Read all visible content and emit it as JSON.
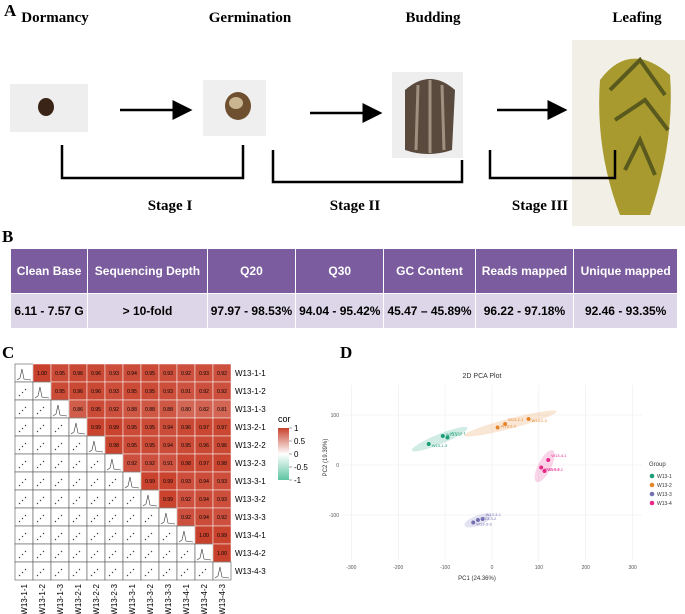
{
  "panel_a": {
    "label": "A",
    "stages": [
      "Dormancy",
      "Germination",
      "Budding",
      "Leafing"
    ],
    "phases": [
      "Stage I",
      "Stage II",
      "Stage III"
    ]
  },
  "table": {
    "label": "B",
    "header": [
      "Clean Base",
      "Sequencing Depth",
      "Q20",
      "Q30",
      "GC Content",
      "Reads mapped",
      "Unique mapped"
    ],
    "rows": [
      [
        "6.11 - 7.57 G",
        "> 10-fold",
        "97.97 - 98.53%",
        "94.04 - 95.42%",
        "45.47 – 45.89%",
        "96.22 - 97.18%",
        "92.46 - 93.35%"
      ]
    ]
  },
  "chart_data": [
    {
      "type": "heatmap",
      "label": "C",
      "labels": [
        "W13-1-1",
        "W13-1-2",
        "W13-1-3",
        "W13-2-1",
        "W13-2-2",
        "W13-2-3",
        "W13-3-1",
        "W13-3-2",
        "W13-3-3",
        "W13-4-1",
        "W13-4-2",
        "W13-4-3"
      ],
      "values": [
        [
          1,
          0.95,
          0.96,
          0.96,
          0.93,
          0.94,
          0.95,
          0.93,
          0.92,
          0.93,
          0.92
        ],
        [
          0.95,
          0.96,
          0.96,
          0.93,
          0.95,
          0.95,
          0.93,
          0.91,
          0.92,
          0.92
        ],
        [
          0.86,
          0.95,
          0.92,
          0.88,
          0.88,
          0.88,
          0.8,
          0.82,
          0.81
        ],
        [
          0.99,
          0.99,
          0.95,
          0.95,
          0.94,
          0.96,
          0.97,
          0.97
        ],
        [
          0.98,
          0.95,
          0.95,
          0.94,
          0.95,
          0.96,
          0.96
        ],
        [
          0.92,
          0.92,
          0.91,
          0.98,
          0.97,
          0.98
        ],
        [
          0.99,
          0.99,
          0.93,
          0.94,
          0.93
        ],
        [
          0.99,
          0.92,
          0.94,
          0.93
        ],
        [
          0.92,
          0.94,
          0.92
        ],
        [
          1,
          0.99
        ],
        [
          1
        ]
      ],
      "value_labels": [
        [
          "1.00",
          "0.95",
          "0.96",
          "0.96",
          "0.93",
          "0.94",
          "0.95",
          "0.93",
          "0.92",
          "0.93",
          "0.92"
        ],
        [
          "0.95",
          "0.96",
          "0.96",
          "0.93",
          "0.95",
          "0.95",
          "0.93",
          "0.91",
          "0.92",
          "0.92"
        ],
        [
          "0.86",
          "0.95",
          "0.92",
          "0.88",
          "0.88",
          "0.88",
          "0.80",
          "0.82",
          "0.81"
        ],
        [
          "0.99",
          "0.99",
          "0.95",
          "0.95",
          "0.94",
          "0.96",
          "0.97",
          "0.97"
        ],
        [
          "0.98",
          "0.95",
          "0.95",
          "0.94",
          "0.95",
          "0.96",
          "0.96"
        ],
        [
          "0.92",
          "0.92",
          "0.91",
          "0.98",
          "0.97",
          "0.98"
        ],
        [
          "0.99",
          "0.99",
          "0.93",
          "0.94",
          "0.93"
        ],
        [
          "0.99",
          "0.92",
          "0.94",
          "0.93"
        ],
        [
          "0.92",
          "0.94",
          "0.92"
        ],
        [
          "1.00",
          "0.99"
        ],
        [
          "1.00"
        ]
      ],
      "legend_title": "cor",
      "clim": [
        -1,
        1
      ],
      "cticks": [
        1,
        0.5,
        0,
        -0.5,
        -1
      ],
      "colors": {
        "low": "#5ec4a2",
        "mid": "#ffffff",
        "high": "#c8412c"
      }
    },
    {
      "type": "scatter",
      "label": "D",
      "title": "2D PCA Plot",
      "xlabel": "PC1 (24.36%)",
      "ylabel": "PC2 (19.39%)",
      "xlim": [
        -320,
        320
      ],
      "ylim": [
        -190,
        160
      ],
      "xticks": [
        -300,
        -200,
        -100,
        0,
        100,
        200,
        300
      ],
      "yticks": [
        -100,
        0,
        100
      ],
      "grid": true,
      "legend_title": "Group",
      "series": [
        {
          "name": "W13-1",
          "color": "#1b9e77",
          "labels": [
            "W13-1-1",
            "W13-1-2",
            "W13-1-3"
          ],
          "x": [
            -95,
            -105,
            -135
          ],
          "y": [
            55,
            58,
            42
          ]
        },
        {
          "name": "W13-2",
          "color": "#e6842a",
          "labels": [
            "W13-2-1",
            "W13-2-2",
            "W13-2-3"
          ],
          "x": [
            28,
            12,
            78
          ],
          "y": [
            82,
            75,
            92
          ]
        },
        {
          "name": "W13-3",
          "color": "#7570b3",
          "labels": [
            "W13-3-1",
            "W13-3-2",
            "W13-3-3"
          ],
          "x": [
            -20,
            -30,
            -40
          ],
          "y": [
            -108,
            -110,
            -115
          ]
        },
        {
          "name": "W13-4",
          "color": "#e7298a",
          "labels": [
            "W13-4-1",
            "W13-4-2",
            "W13-4-3"
          ],
          "x": [
            120,
            112,
            105
          ],
          "y": [
            10,
            -12,
            -5
          ]
        }
      ]
    }
  ]
}
